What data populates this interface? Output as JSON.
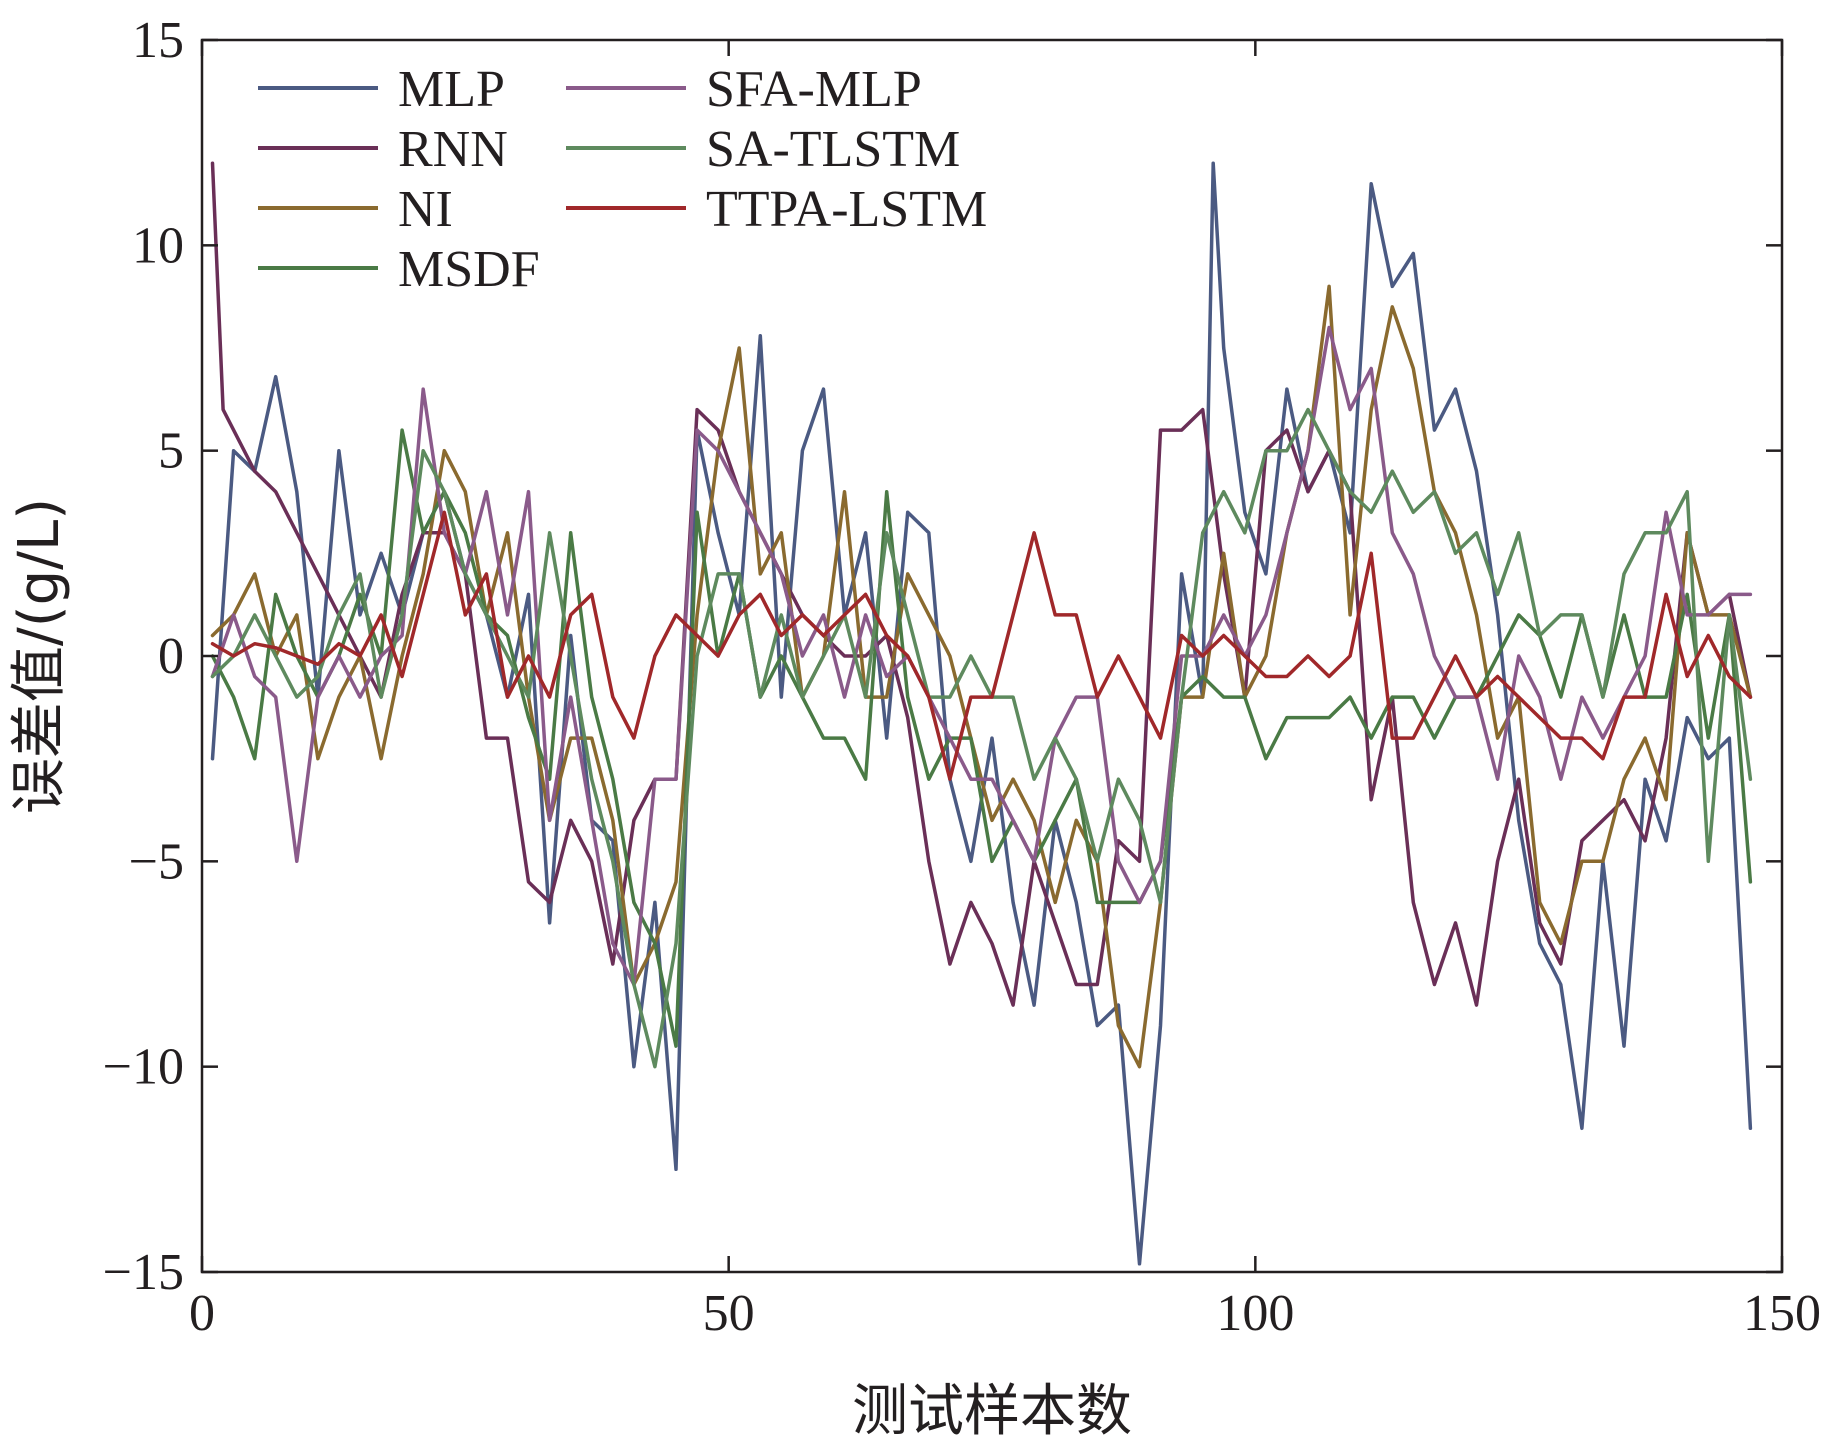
{
  "chart_data": {
    "type": "line",
    "title": "",
    "xlabel": "测试样本数",
    "ylabel": "误差值/(g/L)",
    "xlim": [
      0,
      150
    ],
    "ylim": [
      -15,
      15
    ],
    "xticks": [
      0,
      50,
      100,
      150
    ],
    "xtick_labels": [
      "0",
      "50",
      "100",
      "150"
    ],
    "yticks": [
      -15,
      -10,
      -5,
      0,
      5,
      10,
      15
    ],
    "ytick_labels": [
      "−15",
      "−10",
      "−5",
      "0",
      "5",
      "10",
      "15"
    ],
    "grid": false,
    "legend_position": "top-left",
    "series": [
      {
        "name": "MLP",
        "color": "#4b5a82",
        "x": [
          1,
          3,
          5,
          7,
          9,
          11,
          13,
          15,
          17,
          19,
          21,
          23,
          25,
          27,
          29,
          31,
          33,
          35,
          37,
          39,
          41,
          43,
          45,
          47,
          49,
          51,
          53,
          55,
          57,
          59,
          61,
          63,
          65,
          67,
          69,
          71,
          73,
          75,
          77,
          79,
          81,
          83,
          85,
          87,
          89,
          91,
          93,
          95,
          96,
          97,
          99,
          101,
          103,
          105,
          107,
          109,
          111,
          113,
          115,
          117,
          119,
          121,
          123,
          125,
          127,
          129,
          131,
          133,
          135,
          137,
          139,
          141,
          143,
          145,
          147
        ],
        "y": [
          -2.5,
          5,
          4.5,
          6.8,
          4,
          -1,
          5,
          1,
          2.5,
          1,
          3,
          4,
          2,
          1,
          -1,
          1.5,
          -6.5,
          0.5,
          -4,
          -4.5,
          -10,
          -6,
          -12.5,
          5.5,
          3,
          1,
          7.8,
          -1,
          5,
          6.5,
          1,
          3,
          -2,
          3.5,
          3,
          -3,
          -5,
          -2,
          -6,
          -8.5,
          -4,
          -6,
          -9,
          -8.5,
          -14.8,
          -9,
          2,
          -1,
          12,
          7.5,
          3.5,
          2,
          6.5,
          4,
          5,
          3,
          11.5,
          9,
          9.8,
          5.5,
          6.5,
          4.5,
          1,
          -4,
          -7,
          -8,
          -11.5,
          -5,
          -9.5,
          -3,
          -4.5,
          -1.5,
          -2.5,
          -2,
          -11.5
        ]
      },
      {
        "name": "RNN",
        "color": "#6a2f57",
        "x": [
          1,
          2,
          3,
          5,
          7,
          9,
          11,
          13,
          15,
          17,
          19,
          21,
          23,
          25,
          27,
          29,
          31,
          33,
          35,
          37,
          39,
          41,
          43,
          45,
          47,
          49,
          51,
          53,
          55,
          57,
          59,
          61,
          63,
          65,
          67,
          69,
          71,
          73,
          75,
          77,
          79,
          81,
          83,
          85,
          87,
          89,
          91,
          93,
          95,
          97,
          99,
          101,
          103,
          105,
          107,
          109,
          111,
          113,
          115,
          117,
          119,
          121,
          123,
          125,
          127,
          129,
          131,
          133,
          135,
          137,
          139,
          141,
          143,
          145,
          147
        ],
        "y": [
          12,
          6,
          5.5,
          4.5,
          4,
          3,
          2,
          1,
          0,
          -1,
          1.5,
          3,
          3,
          2,
          -2,
          -2,
          -5.5,
          -6,
          -4,
          -5,
          -7.5,
          -4,
          -3,
          -3,
          6,
          5.5,
          4,
          3,
          2,
          1,
          0.5,
          0,
          0,
          0.5,
          -1.5,
          -5,
          -7.5,
          -6,
          -7,
          -8.5,
          -5,
          -6.5,
          -8,
          -8,
          -4.5,
          -5,
          5.5,
          5.5,
          6,
          2,
          -1,
          5,
          5.5,
          4,
          5,
          4,
          -3.5,
          -1,
          -6,
          -8,
          -6.5,
          -8.5,
          -5,
          -3,
          -6.5,
          -7.5,
          -4.5,
          -4,
          -3.5,
          -4.5,
          -2,
          3,
          1,
          1.5,
          -1
        ]
      },
      {
        "name": "NI",
        "color": "#8a6a2f",
        "x": [
          1,
          3,
          5,
          7,
          9,
          11,
          13,
          15,
          17,
          19,
          21,
          23,
          25,
          27,
          29,
          31,
          33,
          35,
          37,
          39,
          41,
          43,
          45,
          47,
          49,
          51,
          53,
          55,
          57,
          59,
          61,
          63,
          65,
          67,
          69,
          71,
          73,
          75,
          77,
          79,
          81,
          83,
          85,
          87,
          89,
          91,
          93,
          95,
          97,
          99,
          101,
          103,
          105,
          107,
          109,
          111,
          113,
          115,
          117,
          119,
          121,
          123,
          125,
          127,
          129,
          131,
          133,
          135,
          137,
          139,
          141,
          143,
          145,
          147
        ],
        "y": [
          0.5,
          1,
          2,
          0,
          1,
          -2.5,
          -1,
          0,
          -2.5,
          0,
          2,
          5,
          4,
          1,
          3,
          -1,
          -4,
          -2,
          -2,
          -4,
          -8,
          -7,
          -5.5,
          1,
          5,
          7.5,
          2,
          3,
          -1,
          0,
          4,
          -1,
          -1,
          2,
          1,
          0,
          -2,
          -4,
          -3,
          -4,
          -6,
          -4,
          -5,
          -9,
          -10,
          -6,
          -1,
          -1,
          2.5,
          -1,
          0,
          3,
          5,
          9,
          1,
          6,
          8.5,
          7,
          4,
          3,
          1,
          -2,
          -1,
          -6,
          -7,
          -5,
          -5,
          -3,
          -2,
          -3.5,
          3,
          1,
          1,
          -1
        ]
      },
      {
        "name": "MSDF",
        "color": "#4a7a45",
        "x": [
          1,
          3,
          5,
          7,
          9,
          11,
          13,
          15,
          17,
          19,
          21,
          23,
          25,
          27,
          29,
          31,
          33,
          35,
          37,
          39,
          41,
          43,
          45,
          47,
          49,
          51,
          53,
          55,
          57,
          59,
          61,
          63,
          65,
          67,
          69,
          71,
          73,
          75,
          77,
          79,
          81,
          83,
          85,
          87,
          89,
          91,
          93,
          95,
          97,
          99,
          101,
          103,
          105,
          107,
          109,
          111,
          113,
          115,
          117,
          119,
          121,
          123,
          125,
          127,
          129,
          131,
          133,
          135,
          137,
          139,
          141,
          143,
          145,
          147
        ],
        "y": [
          0,
          -1,
          -2.5,
          1.5,
          0,
          -1,
          0,
          1.5,
          0,
          5.5,
          3,
          4,
          3,
          1,
          0.5,
          -1.5,
          -3,
          3,
          -1,
          -3,
          -6,
          -7,
          -9.5,
          3.5,
          0,
          2,
          -1,
          0,
          -1,
          -2,
          -2,
          -3,
          4,
          -1,
          -3,
          -2,
          -2,
          -5,
          -4,
          -5,
          -4,
          -3,
          -6,
          -6,
          -6,
          -5,
          -1,
          -0.5,
          -1,
          -1,
          -2.5,
          -1.5,
          -1.5,
          -1.5,
          -1,
          -2,
          -1,
          -1,
          -2,
          -1,
          -1,
          0,
          1,
          0.5,
          -1,
          1,
          -1,
          1,
          -1,
          -1,
          1.5,
          -2,
          1,
          -5.5
        ]
      },
      {
        "name": "SFA-MLP",
        "color": "#8a5a8a",
        "x": [
          1,
          3,
          5,
          7,
          9,
          11,
          13,
          15,
          17,
          19,
          21,
          23,
          25,
          27,
          29,
          31,
          33,
          35,
          37,
          39,
          41,
          43,
          45,
          47,
          49,
          51,
          53,
          55,
          57,
          59,
          61,
          63,
          65,
          67,
          69,
          71,
          73,
          75,
          77,
          79,
          81,
          83,
          85,
          87,
          89,
          91,
          93,
          95,
          97,
          99,
          101,
          103,
          105,
          107,
          109,
          111,
          113,
          115,
          117,
          119,
          121,
          123,
          125,
          127,
          129,
          131,
          133,
          135,
          137,
          139,
          141,
          143,
          145,
          147
        ],
        "y": [
          -0.5,
          1,
          -0.5,
          -1,
          -5,
          -1,
          0,
          -1,
          0,
          0.5,
          6.5,
          3,
          2,
          4,
          1,
          4,
          -4,
          -1,
          -4,
          -7,
          -8,
          -3,
          -3,
          5.5,
          5,
          4,
          3,
          2,
          0,
          1,
          -1,
          1,
          -0.5,
          0,
          -1,
          -2,
          -3,
          -3,
          -4,
          -5,
          -2,
          -1,
          -1,
          -5,
          -6,
          -5,
          0,
          0,
          1,
          0,
          1,
          3,
          5,
          8,
          6,
          7,
          3,
          2,
          0,
          -1,
          -1,
          -3,
          0,
          -1,
          -3,
          -1,
          -2,
          -1,
          0,
          3.5,
          1,
          1,
          1.5,
          1.5
        ]
      },
      {
        "name": "SA-TLSTM",
        "color": "#5e8a5e",
        "x": [
          1,
          3,
          5,
          7,
          9,
          11,
          13,
          15,
          17,
          19,
          21,
          23,
          25,
          27,
          29,
          31,
          33,
          35,
          37,
          39,
          41,
          43,
          45,
          47,
          49,
          51,
          53,
          55,
          57,
          59,
          61,
          63,
          65,
          67,
          69,
          71,
          73,
          75,
          77,
          79,
          81,
          83,
          85,
          87,
          89,
          91,
          93,
          95,
          97,
          99,
          101,
          103,
          105,
          107,
          109,
          111,
          113,
          115,
          117,
          119,
          121,
          123,
          125,
          127,
          129,
          131,
          133,
          135,
          137,
          139,
          141,
          143,
          145,
          147
        ],
        "y": [
          -0.5,
          0,
          1,
          0,
          -1,
          -0.5,
          1,
          2,
          -1,
          1,
          5,
          4,
          2,
          1,
          0,
          -1,
          3,
          0,
          -3,
          -5,
          -8,
          -10,
          -7,
          0,
          2,
          2,
          -1,
          1,
          -1,
          0,
          1,
          -1,
          3,
          1,
          -1,
          -1,
          0,
          -1,
          -1,
          -3,
          -2,
          -3,
          -5,
          -3,
          -4,
          -6,
          -1,
          3,
          4,
          3,
          5,
          5,
          6,
          5,
          4,
          3.5,
          4.5,
          3.5,
          4,
          2.5,
          3,
          1.5,
          3,
          0.5,
          1,
          1,
          -1,
          2,
          3,
          3,
          4,
          -5,
          1,
          -3
        ]
      },
      {
        "name": "TTPA-LSTM",
        "color": "#a0282a",
        "x": [
          1,
          3,
          5,
          7,
          9,
          11,
          13,
          15,
          17,
          19,
          21,
          23,
          25,
          27,
          29,
          31,
          33,
          35,
          37,
          39,
          41,
          43,
          45,
          47,
          49,
          51,
          53,
          55,
          57,
          59,
          61,
          63,
          65,
          67,
          69,
          71,
          73,
          75,
          77,
          79,
          81,
          83,
          85,
          87,
          89,
          91,
          93,
          95,
          97,
          99,
          101,
          103,
          105,
          107,
          109,
          111,
          113,
          115,
          117,
          119,
          121,
          123,
          125,
          127,
          129,
          131,
          133,
          135,
          137,
          139,
          141,
          143,
          145,
          147
        ],
        "y": [
          0.3,
          0,
          0.3,
          0.2,
          0,
          -0.2,
          0.3,
          0,
          1,
          -0.5,
          1.5,
          3.5,
          1,
          2,
          -1,
          0,
          -1,
          1,
          1.5,
          -1,
          -2,
          0,
          1,
          0.5,
          0,
          1,
          1.5,
          0.5,
          1,
          0.5,
          1,
          1.5,
          0.5,
          0,
          -1,
          -3,
          -1,
          -1,
          1,
          3,
          1,
          1,
          -1,
          0,
          -1,
          -2,
          0.5,
          0,
          0.5,
          0,
          -0.5,
          -0.5,
          0,
          -0.5,
          0,
          2.5,
          -2,
          -2,
          -1,
          0,
          -1,
          -0.5,
          -1,
          -1.5,
          -2,
          -2,
          -2.5,
          -1,
          -1,
          1.5,
          -0.5,
          0.5,
          -0.5,
          -1
        ]
      }
    ]
  }
}
